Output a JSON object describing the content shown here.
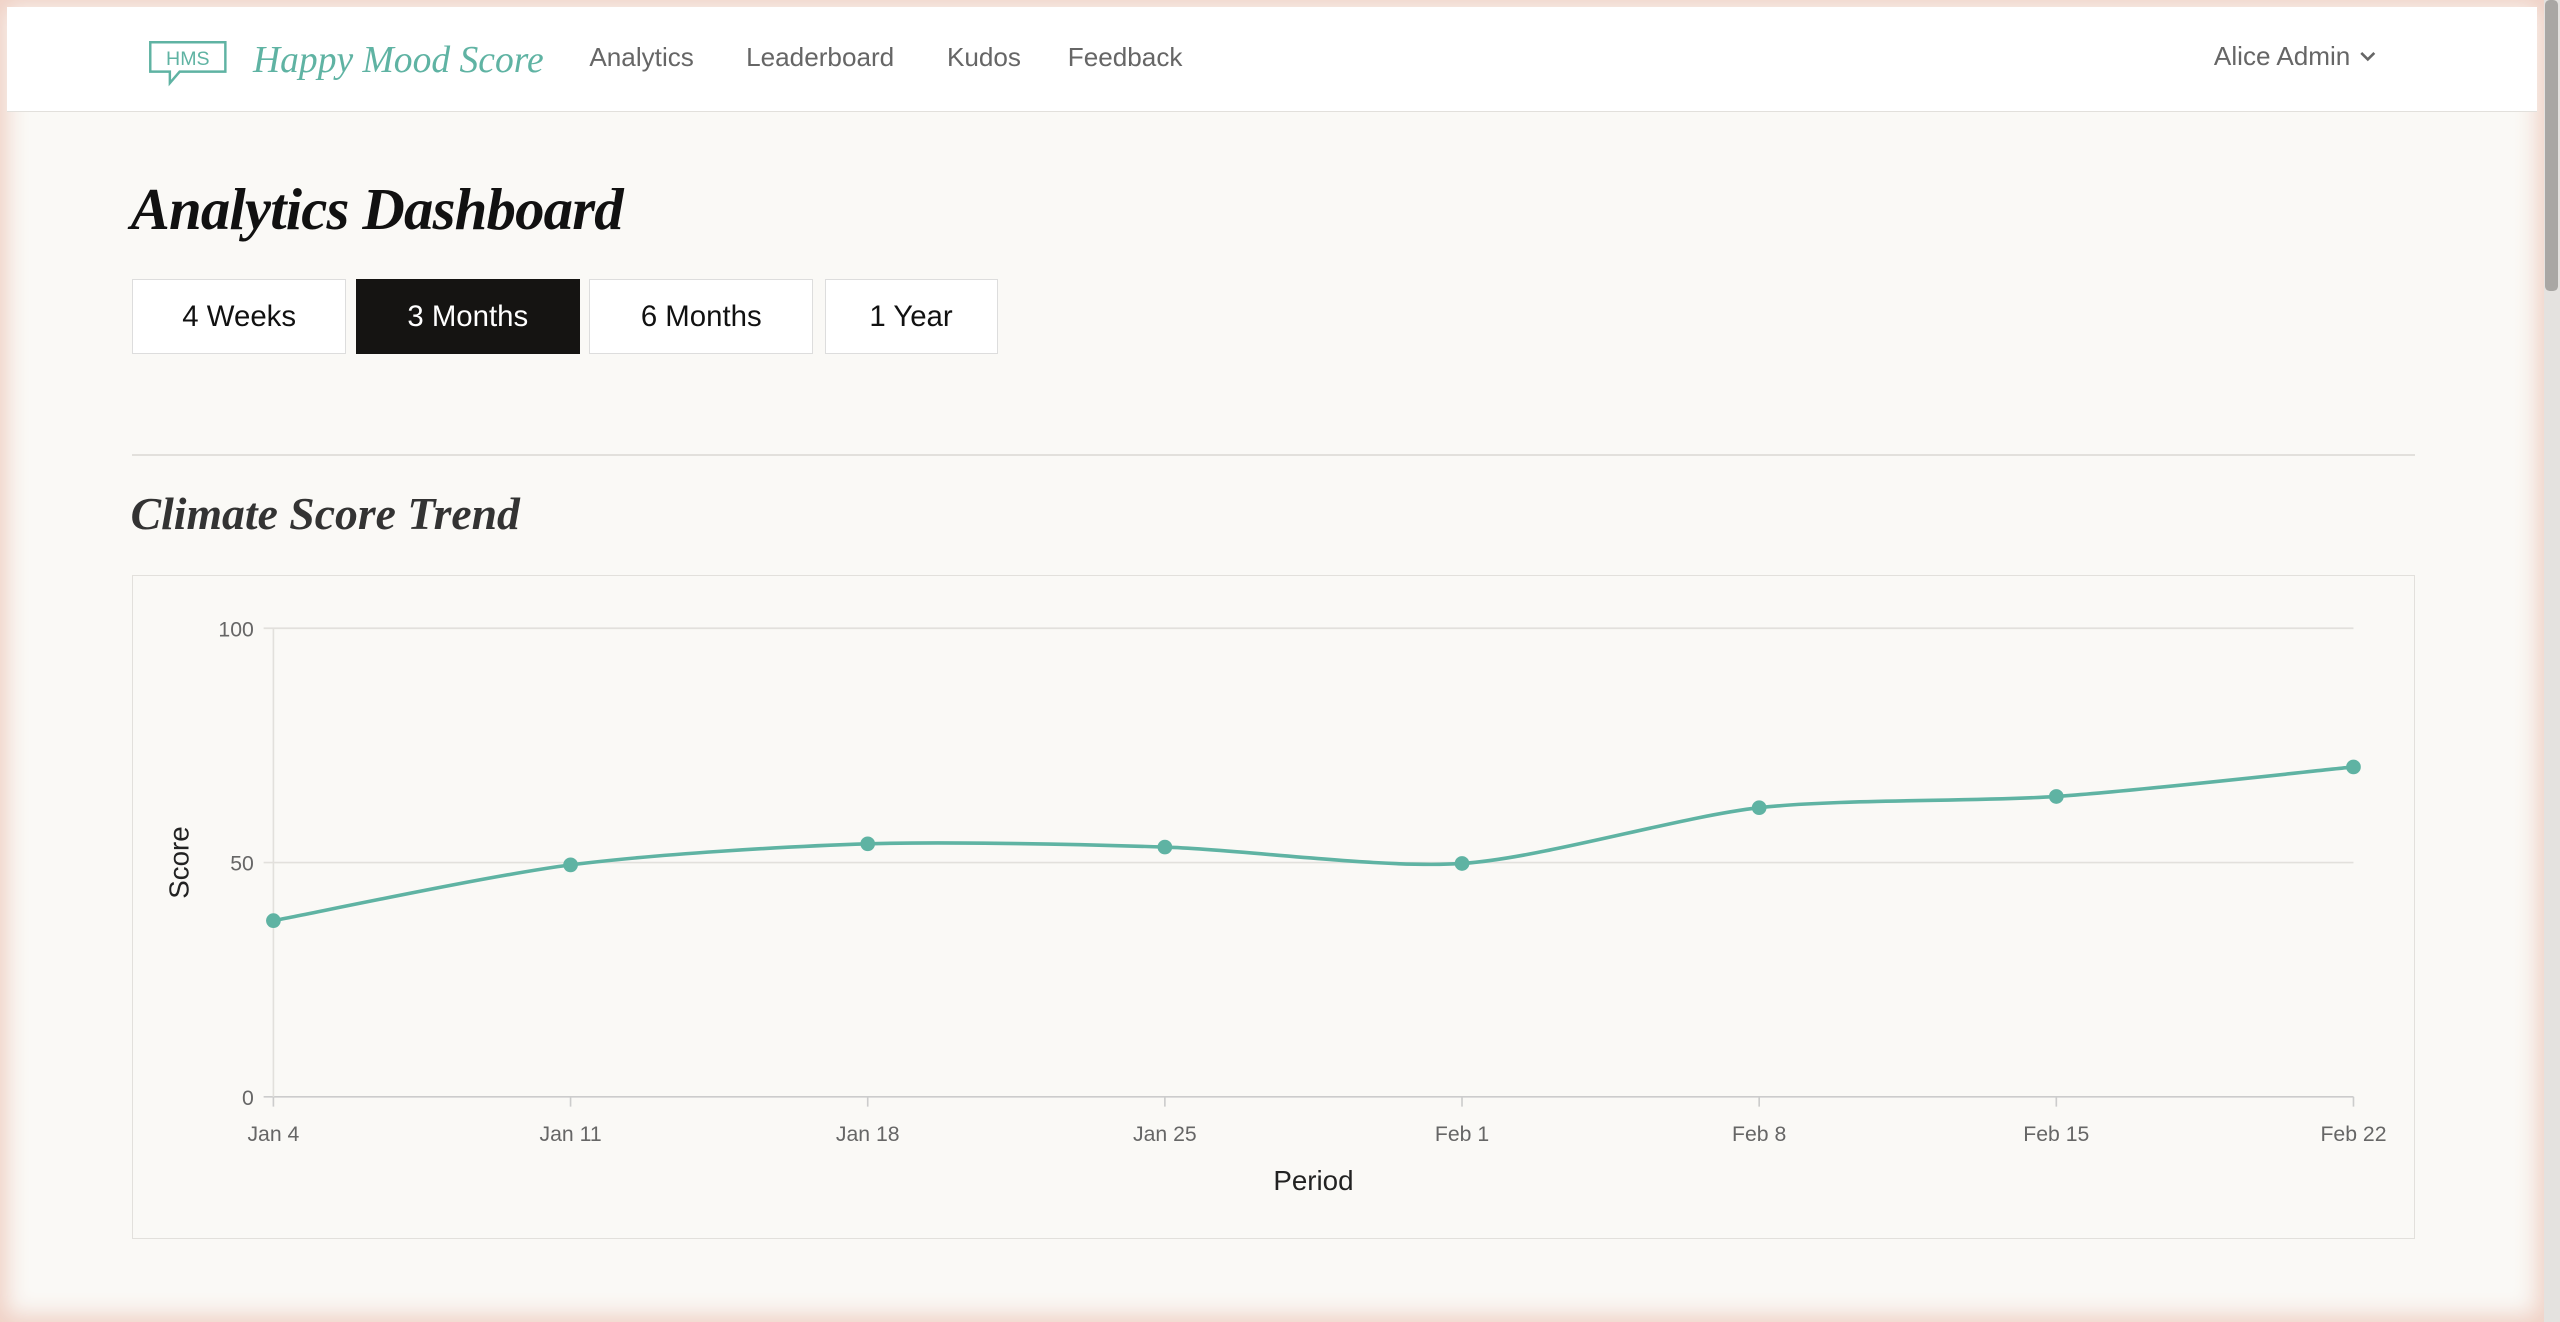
{
  "header": {
    "logo_text": "HMS",
    "brand": "Happy Mood Score",
    "nav": [
      "Analytics",
      "Leaderboard",
      "Kudos",
      "Feedback"
    ],
    "user": "Alice Admin",
    "user_icon": "chevron-down-icon"
  },
  "page": {
    "title": "Analytics Dashboard",
    "ranges": [
      "4 Weeks",
      "3 Months",
      "6 Months",
      "1 Year"
    ],
    "selected_range": "3 Months",
    "section_title": "Climate Score Trend"
  },
  "colors": {
    "accent": "#5fb3a3",
    "selected_button": "#151412"
  },
  "chart_data": {
    "type": "line",
    "categories": [
      "Jan 4",
      "Jan 11",
      "Jan 18",
      "Jan 25",
      "Feb 1",
      "Feb 8",
      "Feb 15",
      "Feb 22"
    ],
    "values": [
      37.6,
      49.5,
      54,
      53.3,
      49.8,
      61.7,
      64.1,
      70.4
    ],
    "xlabel": "Period",
    "ylabel": "Score",
    "ylim": [
      0,
      100
    ],
    "yticks": [
      0,
      50,
      100
    ],
    "grid": true,
    "smooth": true
  }
}
